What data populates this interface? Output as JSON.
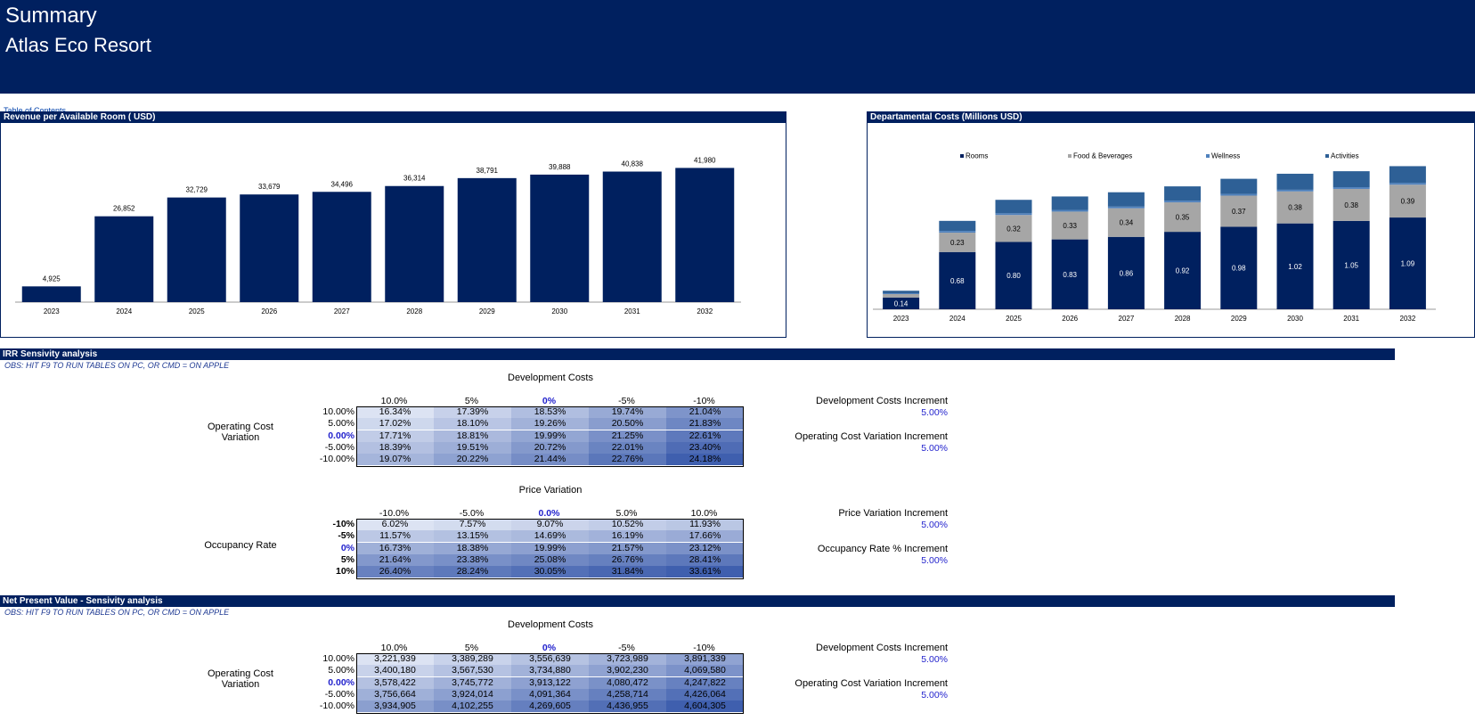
{
  "header": {
    "title": "Summary",
    "subtitle": "Atlas Eco Resort"
  },
  "toc_link": "Table of Contents",
  "colors": {
    "navy": "#00205f",
    "grey": "#a6a6a6",
    "lightblue": "#4f81bd",
    "steel": "#2e6096"
  },
  "revpar_chart": {
    "title": "Revenue per Available Room ( USD)",
    "chart_data": {
      "type": "bar",
      "categories": [
        "2023",
        "2024",
        "2025",
        "2026",
        "2027",
        "2028",
        "2029",
        "2030",
        "2031",
        "2032"
      ],
      "values": [
        4925,
        26852,
        32729,
        33679,
        34496,
        36314,
        38791,
        39888,
        40838,
        41980
      ],
      "labels": [
        "4,925",
        "26,852",
        "32,729",
        "33,679",
        "34,496",
        "36,314",
        "38,791",
        "39,888",
        "40,838",
        "41,980"
      ],
      "ylim": [
        0,
        46000
      ]
    }
  },
  "dept_chart": {
    "title": "Departamental Costs (Millions USD)",
    "chart_data": {
      "type": "bar",
      "stacked": true,
      "categories": [
        "2023",
        "2024",
        "2025",
        "2026",
        "2027",
        "2028",
        "2029",
        "2030",
        "2031",
        "2032"
      ],
      "series": [
        {
          "name": "Rooms",
          "values": [
            0.14,
            0.68,
            0.8,
            0.83,
            0.86,
            0.92,
            0.98,
            1.02,
            1.05,
            1.09
          ],
          "labels": [
            "0.14",
            "0.68",
            "0.80",
            "0.83",
            "0.86",
            "0.92",
            "0.98",
            "1.02",
            "1.05",
            "1.09"
          ],
          "color": "#00205f"
        },
        {
          "name": "Food & Beverages",
          "values": [
            0.04,
            0.23,
            0.32,
            0.33,
            0.34,
            0.35,
            0.37,
            0.38,
            0.38,
            0.39
          ],
          "labels": [
            "",
            "0.23",
            "0.32",
            "0.33",
            "0.34",
            "0.35",
            "0.37",
            "0.38",
            "0.38",
            "0.39"
          ],
          "color": "#a6a6a6"
        },
        {
          "name": "Wellness",
          "values": [
            0.01,
            0.02,
            0.02,
            0.02,
            0.02,
            0.02,
            0.02,
            0.02,
            0.02,
            0.02
          ],
          "labels": [
            "",
            "",
            "",
            "",
            "",
            "",
            "",
            "",
            "",
            ""
          ],
          "color": "#4f81bd"
        },
        {
          "name": "Activities",
          "values": [
            0.03,
            0.12,
            0.16,
            0.16,
            0.17,
            0.17,
            0.18,
            0.19,
            0.19,
            0.2
          ],
          "labels": [
            "",
            "",
            "",
            "",
            "",
            "",
            "",
            "",
            "",
            ""
          ],
          "color": "#2e6096"
        }
      ],
      "legend": "top",
      "ylim": [
        0,
        1.8
      ]
    }
  },
  "irr_section": {
    "title": "IRR Sensivity analysis",
    "obs": "OBS: HIT F9 TO RUN TABLES ON PC, OR CMD = ON APPLE",
    "table1": {
      "title": "Development Costs",
      "row_title": "Operating Cost\nVariation",
      "col_headers": [
        "10.0%",
        "5%",
        "0%",
        "-5%",
        "-10%"
      ],
      "row_headers": [
        "10.00%",
        "5.00%",
        "0.00%",
        "-5.00%",
        "-10.00%"
      ],
      "values": [
        [
          "16.34%",
          "17.39%",
          "18.53%",
          "19.74%",
          "21.04%"
        ],
        [
          "17.02%",
          "18.10%",
          "19.26%",
          "20.50%",
          "21.83%"
        ],
        [
          "17.71%",
          "18.81%",
          "19.99%",
          "21.25%",
          "22.61%"
        ],
        [
          "18.39%",
          "19.51%",
          "20.72%",
          "22.01%",
          "23.40%"
        ],
        [
          "19.07%",
          "20.22%",
          "21.44%",
          "22.76%",
          "24.18%"
        ]
      ],
      "increment1_label": "Development Costs Increment",
      "increment1_value": "5.00%",
      "increment2_label": "Operating Cost Variation Increment",
      "increment2_value": "5.00%"
    },
    "table2": {
      "title": "Price Variation",
      "row_title": "Occupancy Rate",
      "col_headers": [
        "-10.0%",
        "-5.0%",
        "0.0%",
        "5.0%",
        "10.0%"
      ],
      "row_headers": [
        "-10%",
        "-5%",
        "0%",
        "5%",
        "10%"
      ],
      "values": [
        [
          "6.02%",
          "7.57%",
          "9.07%",
          "10.52%",
          "11.93%"
        ],
        [
          "11.57%",
          "13.15%",
          "14.69%",
          "16.19%",
          "17.66%"
        ],
        [
          "16.73%",
          "18.38%",
          "19.99%",
          "21.57%",
          "23.12%"
        ],
        [
          "21.64%",
          "23.38%",
          "25.08%",
          "26.76%",
          "28.41%"
        ],
        [
          "26.40%",
          "28.24%",
          "30.05%",
          "31.84%",
          "33.61%"
        ]
      ],
      "increment1_label": "Price Variation Increment",
      "increment1_value": "5.00%",
      "increment2_label": "Occupancy  Rate % Increment",
      "increment2_value": "5.00%"
    }
  },
  "npv_section": {
    "title": "Net Present Value - Sensivity analysis",
    "obs": "OBS: HIT F9 TO RUN TABLES ON PC, OR CMD = ON APPLE",
    "table1": {
      "title": "Development Costs",
      "row_title": "Operating Cost\nVariation",
      "col_headers": [
        "10.0%",
        "5%",
        "0%",
        "-5%",
        "-10%"
      ],
      "row_headers": [
        "10.00%",
        "5.00%",
        "0.00%",
        "-5.00%",
        "-10.00%"
      ],
      "values": [
        [
          "3,221,939",
          "3,389,289",
          "3,556,639",
          "3,723,989",
          "3,891,339"
        ],
        [
          "3,400,180",
          "3,567,530",
          "3,734,880",
          "3,902,230",
          "4,069,580"
        ],
        [
          "3,578,422",
          "3,745,772",
          "3,913,122",
          "4,080,472",
          "4,247,822"
        ],
        [
          "3,756,664",
          "3,924,014",
          "4,091,364",
          "4,258,714",
          "4,426,064"
        ],
        [
          "3,934,905",
          "4,102,255",
          "4,269,605",
          "4,436,955",
          "4,604,305"
        ]
      ],
      "increment1_label": "Development Costs Increment",
      "increment1_value": "5.00%",
      "increment2_label": "Operating Cost Variation Increment",
      "increment2_value": "5.00%"
    }
  }
}
